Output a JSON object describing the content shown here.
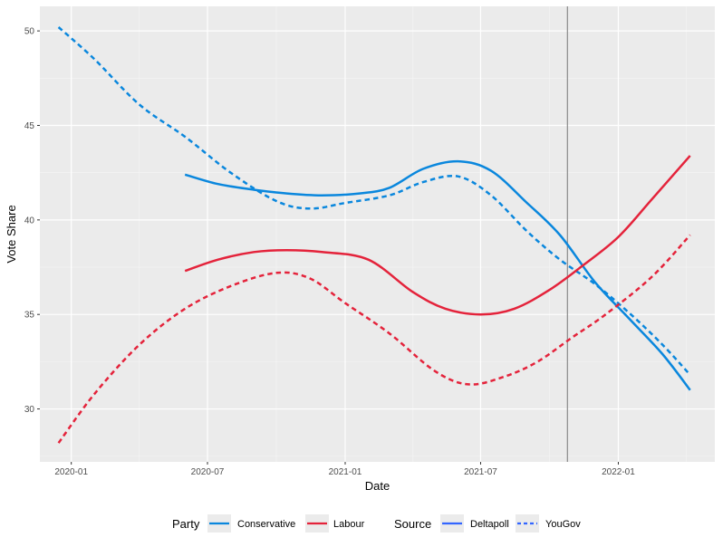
{
  "chart_data": {
    "type": "line",
    "xlabel": "Date",
    "ylabel": "Vote Share",
    "x_axis_type": "date",
    "xlim": [
      "2019-11-20",
      "2022-05-10"
    ],
    "ylim": [
      27.2,
      51.3
    ],
    "x_ticks": [
      {
        "date": "2020-01-01",
        "label": "2020-01"
      },
      {
        "date": "2020-07-01",
        "label": "2020-07"
      },
      {
        "date": "2021-01-01",
        "label": "2021-01"
      },
      {
        "date": "2021-07-01",
        "label": "2021-07"
      },
      {
        "date": "2022-01-01",
        "label": "2022-01"
      }
    ],
    "y_ticks": [
      30,
      35,
      40,
      45,
      50
    ],
    "grid": true,
    "background": "#ebebeb",
    "vline": {
      "date": "2021-10-25",
      "color": "#808080"
    },
    "colors": {
      "Conservative": "#0a87dd",
      "Labour": "#e4233b"
    },
    "legend": {
      "position": "bottom",
      "party_title": "Party",
      "party_items": [
        {
          "label": "Conservative",
          "color": "#0a87dd"
        },
        {
          "label": "Labour",
          "color": "#e4233b"
        }
      ],
      "source_title": "Source",
      "source_items": [
        {
          "label": "Deltapoll",
          "dash": "solid",
          "color": "#3366ff"
        },
        {
          "label": "YouGov",
          "dash": "dashed",
          "color": "#3366ff"
        }
      ]
    },
    "series": [
      {
        "party": "Conservative",
        "source": "Deltapoll",
        "dash": "solid",
        "points": [
          [
            "2020-06-01",
            42.4
          ],
          [
            "2020-07-15",
            41.9
          ],
          [
            "2020-09-01",
            41.6
          ],
          [
            "2020-10-15",
            41.4
          ],
          [
            "2020-12-01",
            41.3
          ],
          [
            "2021-01-20",
            41.4
          ],
          [
            "2021-03-01",
            41.7
          ],
          [
            "2021-04-15",
            42.7
          ],
          [
            "2021-06-01",
            43.1
          ],
          [
            "2021-07-15",
            42.6
          ],
          [
            "2021-09-01",
            40.9
          ],
          [
            "2021-10-15",
            39.2
          ],
          [
            "2021-12-01",
            36.7
          ],
          [
            "2022-01-15",
            34.8
          ],
          [
            "2022-03-01",
            32.9
          ],
          [
            "2022-04-07",
            31.0
          ]
        ]
      },
      {
        "party": "Conservative",
        "source": "YouGov",
        "dash": "dashed",
        "points": [
          [
            "2019-12-15",
            50.2
          ],
          [
            "2020-02-01",
            48.5
          ],
          [
            "2020-04-01",
            46.1
          ],
          [
            "2020-06-01",
            44.4
          ],
          [
            "2020-08-01",
            42.5
          ],
          [
            "2020-10-01",
            41.0
          ],
          [
            "2020-11-15",
            40.6
          ],
          [
            "2021-01-01",
            40.9
          ],
          [
            "2021-03-01",
            41.3
          ],
          [
            "2021-04-15",
            42.0
          ],
          [
            "2021-06-01",
            42.3
          ],
          [
            "2021-07-15",
            41.3
          ],
          [
            "2021-09-01",
            39.4
          ],
          [
            "2021-10-15",
            37.9
          ],
          [
            "2021-12-01",
            36.6
          ],
          [
            "2022-01-15",
            35.1
          ],
          [
            "2022-03-01",
            33.4
          ],
          [
            "2022-04-07",
            31.8
          ]
        ]
      },
      {
        "party": "Labour",
        "source": "Deltapoll",
        "dash": "solid",
        "points": [
          [
            "2020-06-01",
            37.3
          ],
          [
            "2020-07-15",
            37.9
          ],
          [
            "2020-09-01",
            38.3
          ],
          [
            "2020-10-15",
            38.4
          ],
          [
            "2020-12-01",
            38.3
          ],
          [
            "2021-02-01",
            37.9
          ],
          [
            "2021-04-01",
            36.2
          ],
          [
            "2021-05-15",
            35.3
          ],
          [
            "2021-07-01",
            35.0
          ],
          [
            "2021-08-15",
            35.3
          ],
          [
            "2021-10-01",
            36.3
          ],
          [
            "2021-11-15",
            37.6
          ],
          [
            "2022-01-01",
            39.1
          ],
          [
            "2022-02-15",
            41.1
          ],
          [
            "2022-04-07",
            43.4
          ]
        ]
      },
      {
        "party": "Labour",
        "source": "YouGov",
        "dash": "dashed",
        "points": [
          [
            "2019-12-15",
            28.2
          ],
          [
            "2020-02-01",
            30.8
          ],
          [
            "2020-04-01",
            33.4
          ],
          [
            "2020-06-01",
            35.3
          ],
          [
            "2020-08-01",
            36.5
          ],
          [
            "2020-10-01",
            37.2
          ],
          [
            "2020-11-15",
            36.9
          ],
          [
            "2021-01-01",
            35.6
          ],
          [
            "2021-03-01",
            34.0
          ],
          [
            "2021-05-01",
            32.0
          ],
          [
            "2021-06-15",
            31.3
          ],
          [
            "2021-08-01",
            31.7
          ],
          [
            "2021-09-15",
            32.5
          ],
          [
            "2021-11-01",
            33.8
          ],
          [
            "2021-12-15",
            35.0
          ],
          [
            "2022-02-15",
            37.0
          ],
          [
            "2022-04-07",
            39.2
          ]
        ]
      }
    ]
  }
}
